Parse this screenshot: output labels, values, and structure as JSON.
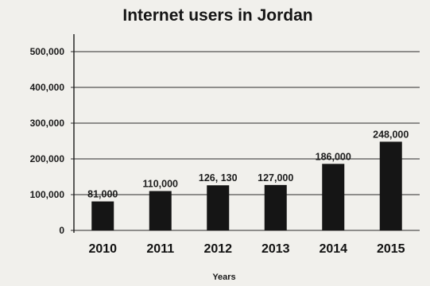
{
  "chart_data": {
    "type": "bar",
    "title": "Internet users in Jordan",
    "xlabel": "Years",
    "ylabel": "",
    "categories": [
      "2010",
      "2011",
      "2012",
      "2013",
      "2014",
      "2015"
    ],
    "values": [
      81000,
      110000,
      126130,
      127000,
      186000,
      248000
    ],
    "data_labels": [
      "81,000",
      "110,000",
      "126, 130",
      "127,000",
      "186,000",
      "248,000"
    ],
    "yticks": [
      0,
      100000,
      200000,
      300000,
      400000,
      500000
    ],
    "ytick_labels": [
      "0",
      "100,000",
      "200,000",
      "300,000",
      "400,000",
      "500,000"
    ],
    "ylim": [
      0,
      500000
    ],
    "grid": true,
    "legend": "none",
    "bar_color": "#151515"
  }
}
